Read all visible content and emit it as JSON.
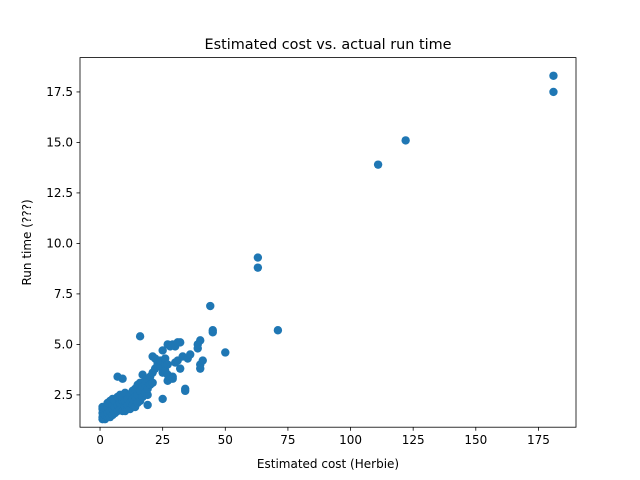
{
  "chart_data": {
    "type": "scatter",
    "title": "Estimated cost vs. actual run time",
    "xlabel": "Estimated cost (Herbie)",
    "ylabel": "Run time (???)",
    "xlim": [
      -8,
      190
    ],
    "ylim": [
      0.9,
      19.2
    ],
    "xticks": [
      0,
      25,
      50,
      75,
      100,
      125,
      150,
      175
    ],
    "xtick_labels": [
      "0",
      "25",
      "50",
      "75",
      "100",
      "125",
      "150",
      "175"
    ],
    "yticks": [
      2.5,
      5.0,
      7.5,
      10.0,
      12.5,
      15.0,
      17.5
    ],
    "ytick_labels": [
      "2.5",
      "5.0",
      "7.5",
      "10.0",
      "12.5",
      "15.0",
      "17.5"
    ],
    "grid": false,
    "marker_color": "#1f77b4",
    "series": [
      {
        "points": [
          [
            1,
            1.3
          ],
          [
            1,
            1.4
          ],
          [
            1,
            1.6
          ],
          [
            1,
            1.8
          ],
          [
            1,
            1.9
          ],
          [
            2,
            1.3
          ],
          [
            2,
            1.5
          ],
          [
            3,
            1.4
          ],
          [
            3,
            1.6
          ],
          [
            3,
            1.9
          ],
          [
            3,
            2.1
          ],
          [
            4,
            1.4
          ],
          [
            4,
            1.7
          ],
          [
            4,
            2.2
          ],
          [
            5,
            1.5
          ],
          [
            5,
            1.8
          ],
          [
            5,
            2.0
          ],
          [
            5,
            2.3
          ],
          [
            6,
            1.6
          ],
          [
            6,
            1.9
          ],
          [
            6,
            2.2
          ],
          [
            7,
            1.7
          ],
          [
            7,
            2.0
          ],
          [
            7,
            2.4
          ],
          [
            7,
            3.4
          ],
          [
            8,
            1.8
          ],
          [
            8,
            2.1
          ],
          [
            8,
            2.5
          ],
          [
            9,
            1.7
          ],
          [
            9,
            2.2
          ],
          [
            9,
            2.4
          ],
          [
            9,
            3.3
          ],
          [
            10,
            1.7
          ],
          [
            10,
            1.9
          ],
          [
            10,
            2.2
          ],
          [
            10,
            2.6
          ],
          [
            11,
            1.8
          ],
          [
            11,
            2.0
          ],
          [
            11,
            2.3
          ],
          [
            12,
            1.8
          ],
          [
            12,
            2.1
          ],
          [
            12,
            2.5
          ],
          [
            13,
            2.0
          ],
          [
            13,
            2.3
          ],
          [
            13,
            2.7
          ],
          [
            14,
            1.9
          ],
          [
            14,
            2.4
          ],
          [
            14,
            2.8
          ],
          [
            15,
            2.1
          ],
          [
            15,
            2.5
          ],
          [
            15,
            3.0
          ],
          [
            16,
            2.2
          ],
          [
            16,
            2.7
          ],
          [
            16,
            3.1
          ],
          [
            16,
            5.4
          ],
          [
            17,
            2.4
          ],
          [
            17,
            2.9
          ],
          [
            17,
            3.5
          ],
          [
            18,
            2.6
          ],
          [
            18,
            3.0
          ],
          [
            18,
            3.2
          ],
          [
            19,
            2.0
          ],
          [
            19,
            2.5
          ],
          [
            19,
            2.8
          ],
          [
            19,
            3.3
          ],
          [
            20,
            3.0
          ],
          [
            20,
            3.4
          ],
          [
            21,
            3.1
          ],
          [
            21,
            3.6
          ],
          [
            21,
            4.4
          ],
          [
            22,
            3.8
          ],
          [
            22,
            4.3
          ],
          [
            23,
            4.0
          ],
          [
            23,
            4.1
          ],
          [
            24,
            3.9
          ],
          [
            24,
            4.2
          ],
          [
            25,
            2.3
          ],
          [
            25,
            3.6
          ],
          [
            25,
            4.7
          ],
          [
            26,
            4.0
          ],
          [
            26,
            4.3
          ],
          [
            26,
            3.7
          ],
          [
            27,
            3.2
          ],
          [
            27,
            3.5
          ],
          [
            27,
            4.0
          ],
          [
            27,
            5.0
          ],
          [
            28,
            3.3
          ],
          [
            28,
            4.9
          ],
          [
            29,
            3.4
          ],
          [
            29,
            3.3
          ],
          [
            29,
            5.0
          ],
          [
            30,
            4.1
          ],
          [
            30,
            4.9
          ],
          [
            31,
            4.2
          ],
          [
            31,
            5.1
          ],
          [
            32,
            3.8
          ],
          [
            32,
            5.1
          ],
          [
            33,
            4.4
          ],
          [
            34,
            2.8
          ],
          [
            34,
            2.7
          ],
          [
            35,
            4.3
          ],
          [
            36,
            4.5
          ],
          [
            39,
            4.8
          ],
          [
            39,
            5.0
          ],
          [
            40,
            3.8
          ],
          [
            40,
            4.0
          ],
          [
            40,
            5.2
          ],
          [
            41,
            4.2
          ],
          [
            44,
            6.9
          ],
          [
            45,
            5.7
          ],
          [
            45,
            5.6
          ],
          [
            50,
            4.6
          ],
          [
            63,
            9.3
          ],
          [
            63,
            8.8
          ],
          [
            71,
            5.7
          ],
          [
            111,
            13.9
          ],
          [
            122,
            15.1
          ],
          [
            181,
            18.3
          ],
          [
            181,
            17.5
          ]
        ]
      }
    ]
  }
}
